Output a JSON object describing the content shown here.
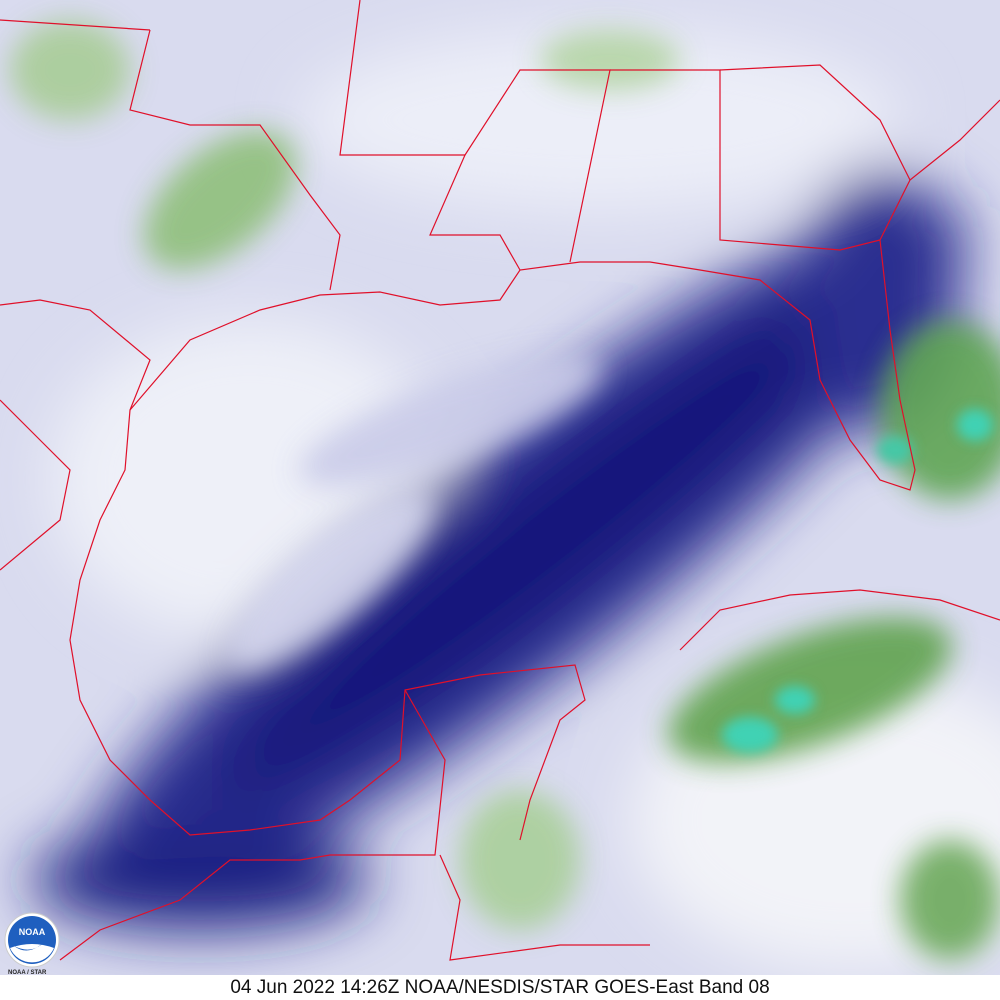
{
  "caption": "04 Jun 2022 14:26Z NOAA/NESDIS/STAR GOES-East Band 08",
  "logo": {
    "text": "NOAA",
    "subtext": "NOAA / STAR"
  },
  "colors": {
    "dry_air": "#1a1f7a",
    "moist_air": "#eceef7",
    "high_cloud": "#5aa04a",
    "deep_convection": "#3fd0b0",
    "borders": "#e0102a"
  }
}
